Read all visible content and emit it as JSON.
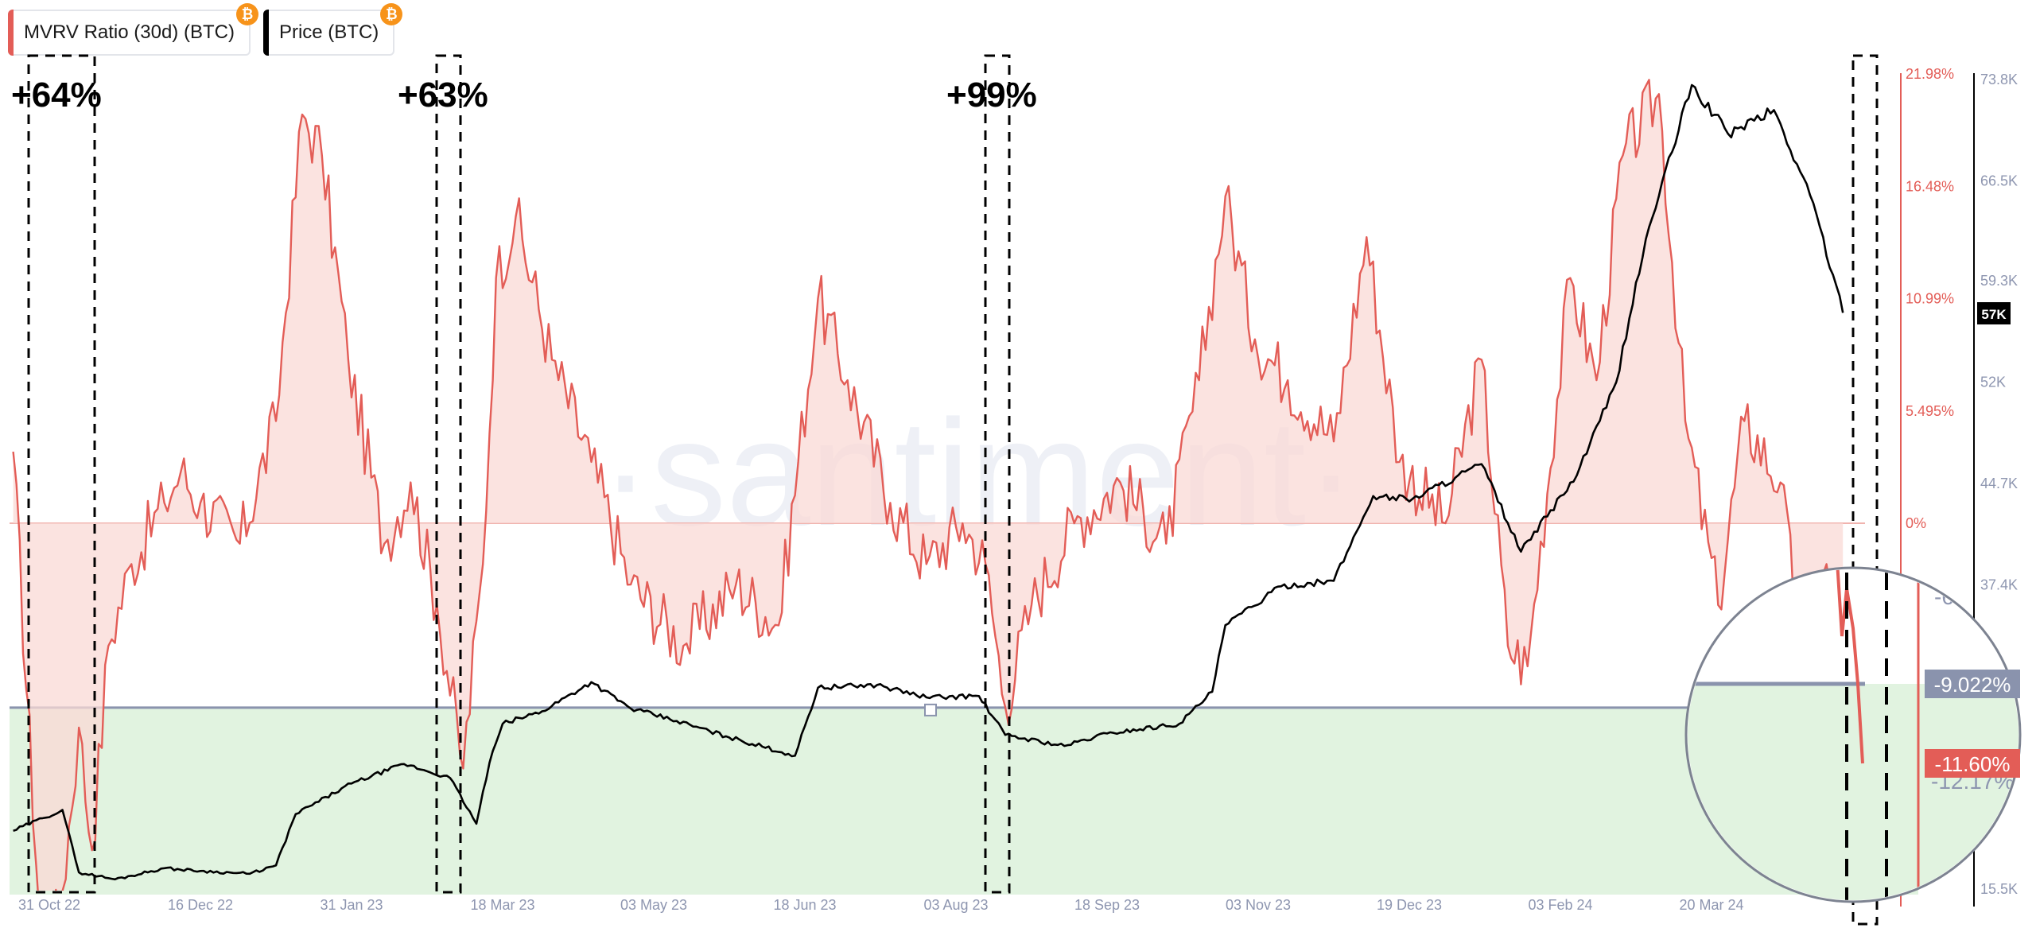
{
  "legend": [
    {
      "label": "MVRV Ratio (30d) (BTC)",
      "color": "#e35d57",
      "badge": "₿"
    },
    {
      "label": "Price (BTC)",
      "color": "#000000",
      "badge": "₿"
    }
  ],
  "watermark": "·santiment·",
  "annotations": [
    "+64%",
    "+63%",
    "+99%"
  ],
  "x_ticks": [
    "31 Oct 22",
    "16 Dec 22",
    "31 Jan 23",
    "18 Mar 23",
    "03 May 23",
    "18 Jun 23",
    "03 Aug 23",
    "18 Sep 23",
    "03 Nov 23",
    "19 Dec 23",
    "03 Feb 24",
    "20 Mar 24"
  ],
  "left_axis_ticks": [
    "21.98%",
    "16.48%",
    "10.99%",
    "5.495%",
    "0%",
    "-6.0"
  ],
  "right_axis_ticks": [
    "73.8K",
    "66.5K",
    "59.3K",
    "52K",
    "44.7K",
    "37.4K",
    "15.5K"
  ],
  "price_badge": "57K",
  "zoom": {
    "level_badge": "-9.022%",
    "value_badge": "-11.60%",
    "tick_upper": "-6.0",
    "tick_lower": "-12.17%"
  },
  "chart_data": {
    "type": "line",
    "title": "",
    "legend_position": "top-left",
    "grid": false,
    "x": [
      "2022-10-31",
      "2022-12-16",
      "2023-01-31",
      "2023-03-18",
      "2023-05-03",
      "2023-06-18",
      "2023-08-03",
      "2023-09-18",
      "2023-11-03",
      "2023-12-19",
      "2024-02-03",
      "2024-03-20"
    ],
    "series": [
      {
        "name": "MVRV Ratio (30d) (BTC)",
        "axis": "left",
        "unit": "%",
        "points": [
          [
            "2022-10-20",
            3.5
          ],
          [
            "2022-10-29",
            -22
          ],
          [
            "2022-11-04",
            -18
          ],
          [
            "2022-11-09",
            -10
          ],
          [
            "2022-11-13",
            -16
          ],
          [
            "2022-11-18",
            -6
          ],
          [
            "2022-11-25",
            -2
          ],
          [
            "2022-12-05",
            1
          ],
          [
            "2022-12-10",
            2.5
          ],
          [
            "2022-12-16",
            1
          ],
          [
            "2022-12-28",
            -1
          ],
          [
            "2023-01-08",
            5
          ],
          [
            "2023-01-16",
            20
          ],
          [
            "2023-01-22",
            18
          ],
          [
            "2023-01-30",
            8
          ],
          [
            "2023-02-10",
            -1
          ],
          [
            "2023-02-18",
            2
          ],
          [
            "2023-02-26",
            -4
          ],
          [
            "2023-03-06",
            -12
          ],
          [
            "2023-03-12",
            -2
          ],
          [
            "2023-03-16",
            12
          ],
          [
            "2023-03-22",
            15
          ],
          [
            "2023-04-02",
            8
          ],
          [
            "2023-04-14",
            3
          ],
          [
            "2023-04-26",
            -3
          ],
          [
            "2023-05-12",
            -6
          ],
          [
            "2023-05-28",
            -3
          ],
          [
            "2023-06-10",
            -5
          ],
          [
            "2023-06-22",
            11
          ],
          [
            "2023-07-01",
            7
          ],
          [
            "2023-07-14",
            1
          ],
          [
            "2023-07-25",
            -2
          ],
          [
            "2023-08-05",
            0
          ],
          [
            "2023-08-12",
            -2
          ],
          [
            "2023-08-18",
            -9
          ],
          [
            "2023-08-26",
            -4
          ],
          [
            "2023-09-08",
            0
          ],
          [
            "2023-09-22",
            2
          ],
          [
            "2023-10-06",
            -1
          ],
          [
            "2023-10-16",
            7
          ],
          [
            "2023-10-24",
            16
          ],
          [
            "2023-11-02",
            9
          ],
          [
            "2023-11-12",
            7
          ],
          [
            "2023-11-26",
            4
          ],
          [
            "2023-12-06",
            14
          ],
          [
            "2023-12-16",
            3
          ],
          [
            "2023-12-30",
            0
          ],
          [
            "2024-01-10",
            8
          ],
          [
            "2024-01-18",
            -6
          ],
          [
            "2024-01-24",
            -7
          ],
          [
            "2024-02-06",
            12
          ],
          [
            "2024-02-14",
            7
          ],
          [
            "2024-02-22",
            18
          ],
          [
            "2024-03-04",
            21
          ],
          [
            "2024-03-12",
            5
          ],
          [
            "2024-03-22",
            -4
          ],
          [
            "2024-03-30",
            5
          ],
          [
            "2024-04-10",
            2
          ],
          [
            "2024-04-16",
            -6
          ],
          [
            "2024-04-24",
            -2
          ],
          [
            "2024-04-29",
            -11.6
          ]
        ]
      },
      {
        "name": "Price (BTC)",
        "axis": "right",
        "unit": "USD",
        "points": [
          [
            "2022-10-20",
            19700
          ],
          [
            "2022-10-29",
            20600
          ],
          [
            "2022-11-04",
            21200
          ],
          [
            "2022-11-09",
            16700
          ],
          [
            "2022-11-20",
            16200
          ],
          [
            "2022-12-05",
            17000
          ],
          [
            "2022-12-16",
            16800
          ],
          [
            "2022-12-31",
            16600
          ],
          [
            "2023-01-08",
            17200
          ],
          [
            "2023-01-14",
            20900
          ],
          [
            "2023-01-31",
            23100
          ],
          [
            "2023-02-16",
            24500
          ],
          [
            "2023-03-02",
            23500
          ],
          [
            "2023-03-10",
            20200
          ],
          [
            "2023-03-14",
            24600
          ],
          [
            "2023-03-18",
            27400
          ],
          [
            "2023-03-30",
            28300
          ],
          [
            "2023-04-14",
            30400
          ],
          [
            "2023-04-26",
            28500
          ],
          [
            "2023-05-10",
            27600
          ],
          [
            "2023-05-25",
            26500
          ],
          [
            "2023-06-15",
            25100
          ],
          [
            "2023-06-22",
            30000
          ],
          [
            "2023-07-10",
            30200
          ],
          [
            "2023-07-25",
            29300
          ],
          [
            "2023-08-10",
            29400
          ],
          [
            "2023-08-18",
            26600
          ],
          [
            "2023-09-05",
            25800
          ],
          [
            "2023-09-18",
            26700
          ],
          [
            "2023-10-10",
            27400
          ],
          [
            "2023-10-20",
            29700
          ],
          [
            "2023-10-24",
            34500
          ],
          [
            "2023-11-10",
            37300
          ],
          [
            "2023-11-26",
            37700
          ],
          [
            "2023-12-08",
            43800
          ],
          [
            "2023-12-20",
            43600
          ],
          [
            "2024-01-10",
            46100
          ],
          [
            "2024-01-22",
            39800
          ],
          [
            "2024-02-08",
            45300
          ],
          [
            "2024-02-20",
            52000
          ],
          [
            "2024-02-29",
            62300
          ],
          [
            "2024-03-14",
            73400
          ],
          [
            "2024-03-25",
            69900
          ],
          [
            "2024-04-08",
            71600
          ],
          [
            "2024-04-20",
            64900
          ],
          [
            "2024-04-29",
            57000
          ]
        ]
      }
    ],
    "reference_levels": {
      "zero_percent": 0,
      "threshold_percent": -9.022
    }
  }
}
